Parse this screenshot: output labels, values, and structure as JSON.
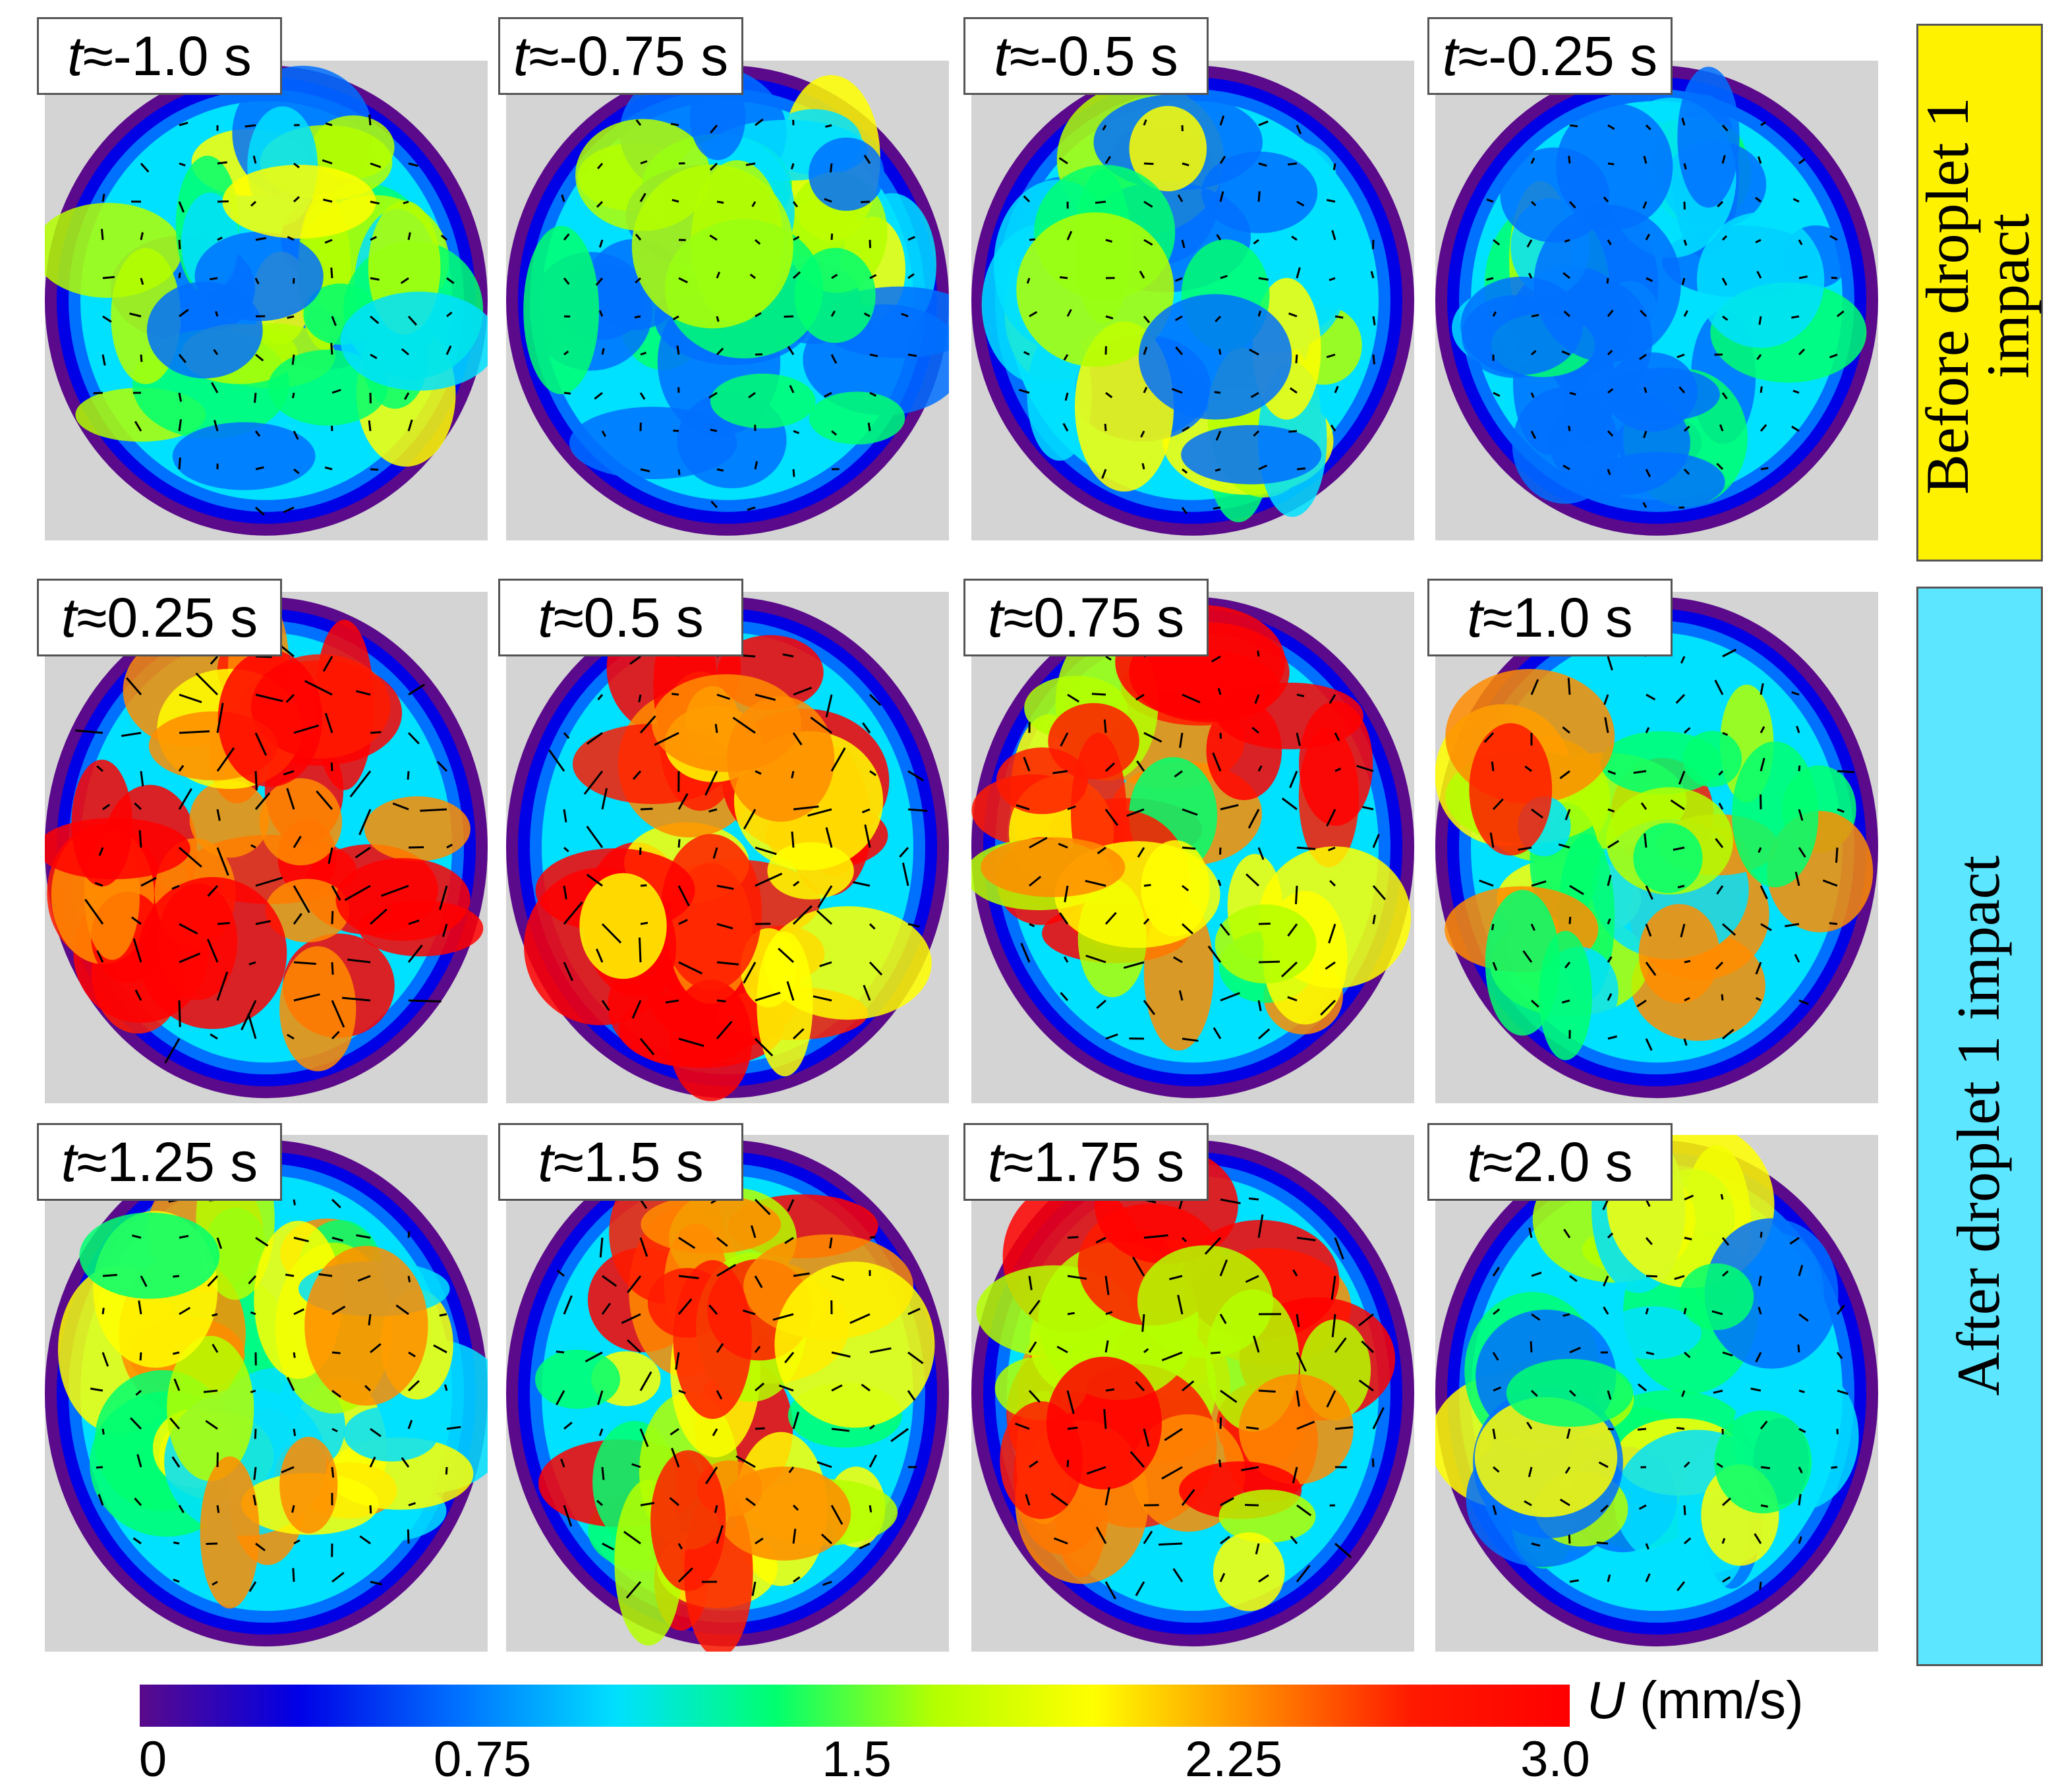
{
  "panels": [
    {
      "label": "-1.0 s",
      "row": 0,
      "col": 0
    },
    {
      "label": "-0.75 s",
      "row": 0,
      "col": 1
    },
    {
      "label": "-0.5 s",
      "row": 0,
      "col": 2
    },
    {
      "label": "-0.25 s",
      "row": 0,
      "col": 3
    },
    {
      "label": "0.25 s",
      "row": 1,
      "col": 0
    },
    {
      "label": "0.5 s",
      "row": 1,
      "col": 1
    },
    {
      "label": "0.75 s",
      "row": 1,
      "col": 2
    },
    {
      "label": "1.0 s",
      "row": 1,
      "col": 3
    },
    {
      "label": "1.25 s",
      "row": 2,
      "col": 0
    },
    {
      "label": "1.5 s",
      "row": 2,
      "col": 1
    },
    {
      "label": "1.75 s",
      "row": 2,
      "col": 2
    },
    {
      "label": "2.0 s",
      "row": 2,
      "col": 3
    }
  ],
  "time_symbol": "t",
  "approx_symbol": "≈",
  "side_labels": {
    "before_line1": "Before droplet 1",
    "before_line2": "impact",
    "after": "After droplet 1 impact"
  },
  "colorbar": {
    "variable": "U",
    "unit": " (mm/s)",
    "ticks": [
      "0",
      "0.75",
      "1.5",
      "2.25",
      "3.0"
    ],
    "min": 0,
    "max": 3.0,
    "colors": [
      "#5a0a8a",
      "#0000e6",
      "#0070ff",
      "#00e0ff",
      "#00ff70",
      "#b4ff00",
      "#ffff00",
      "#ff8c00",
      "#ff1a00",
      "#ff0000"
    ]
  },
  "colors": {
    "before_box": "#fff200",
    "after_box": "#5ce6ff",
    "background": "#d4d4d4"
  }
}
